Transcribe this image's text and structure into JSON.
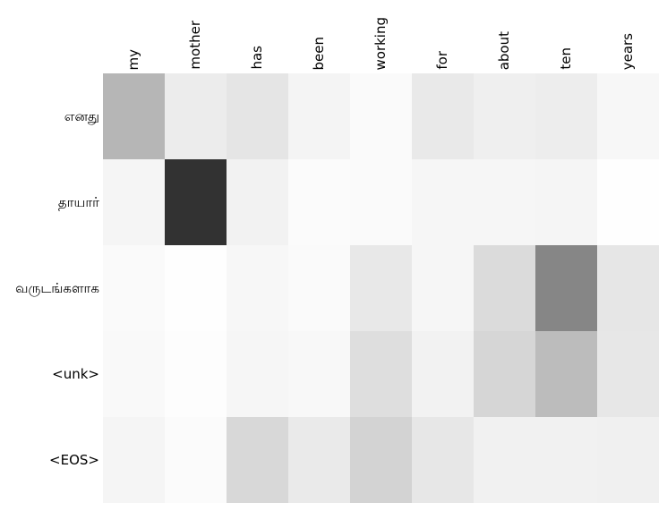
{
  "chart_data": {
    "type": "heatmap",
    "description": "Neural machine translation attention matrix: English source tokens (columns) vs Tamil target tokens (rows); darker cell = higher attention weight",
    "x_labels": [
      "my",
      "mother",
      "has",
      "been",
      "working",
      "for",
      "about",
      "ten",
      "years"
    ],
    "y_labels": [
      "எனது",
      "தாயார்",
      "வருடங்களாக",
      "<unk>",
      "<EOS>"
    ],
    "values": [
      [
        0.29,
        0.08,
        0.1,
        0.04,
        0.02,
        0.09,
        0.06,
        0.07,
        0.03
      ],
      [
        0.04,
        0.8,
        0.05,
        0.02,
        0.02,
        0.04,
        0.04,
        0.04,
        0.0
      ],
      [
        0.02,
        0.0,
        0.03,
        0.02,
        0.09,
        0.04,
        0.14,
        0.47,
        0.1
      ],
      [
        0.02,
        0.01,
        0.04,
        0.03,
        0.13,
        0.05,
        0.16,
        0.26,
        0.09
      ],
      [
        0.04,
        0.02,
        0.15,
        0.08,
        0.17,
        0.09,
        0.06,
        0.06,
        0.06
      ]
    ],
    "cell_colors": [
      [
        "#b6b6b6",
        "#ececec",
        "#e5e5e5",
        "#f4f4f4",
        "#fafafa",
        "#e9e9e9",
        "#efefef",
        "#ededed",
        "#f7f7f7"
      ],
      [
        "#f5f5f5",
        "#323232",
        "#f2f2f2",
        "#fbfbfb",
        "#fafafa",
        "#f6f6f6",
        "#f6f6f6",
        "#f5f5f5",
        "#fefefe"
      ],
      [
        "#fafafa",
        "#fefefe",
        "#f7f7f7",
        "#fafafa",
        "#e8e8e8",
        "#f6f6f6",
        "#dbdbdb",
        "#868686",
        "#e6e6e6"
      ],
      [
        "#f9f9f9",
        "#fdfdfd",
        "#f6f6f6",
        "#f8f8f8",
        "#dedede",
        "#f2f2f2",
        "#d6d6d6",
        "#bcbcbc",
        "#e7e7e7"
      ],
      [
        "#f5f5f5",
        "#fbfbfb",
        "#d8d8d8",
        "#eaeaea",
        "#d3d3d3",
        "#e7e7e7",
        "#f1f1f1",
        "#f1f1f1",
        "#f0f0f0"
      ]
    ],
    "colormap": "gray_r",
    "value_range": [
      0,
      1
    ],
    "grid": false,
    "legend": "none",
    "background_color": "#ffffff",
    "label_color": "#000000"
  }
}
